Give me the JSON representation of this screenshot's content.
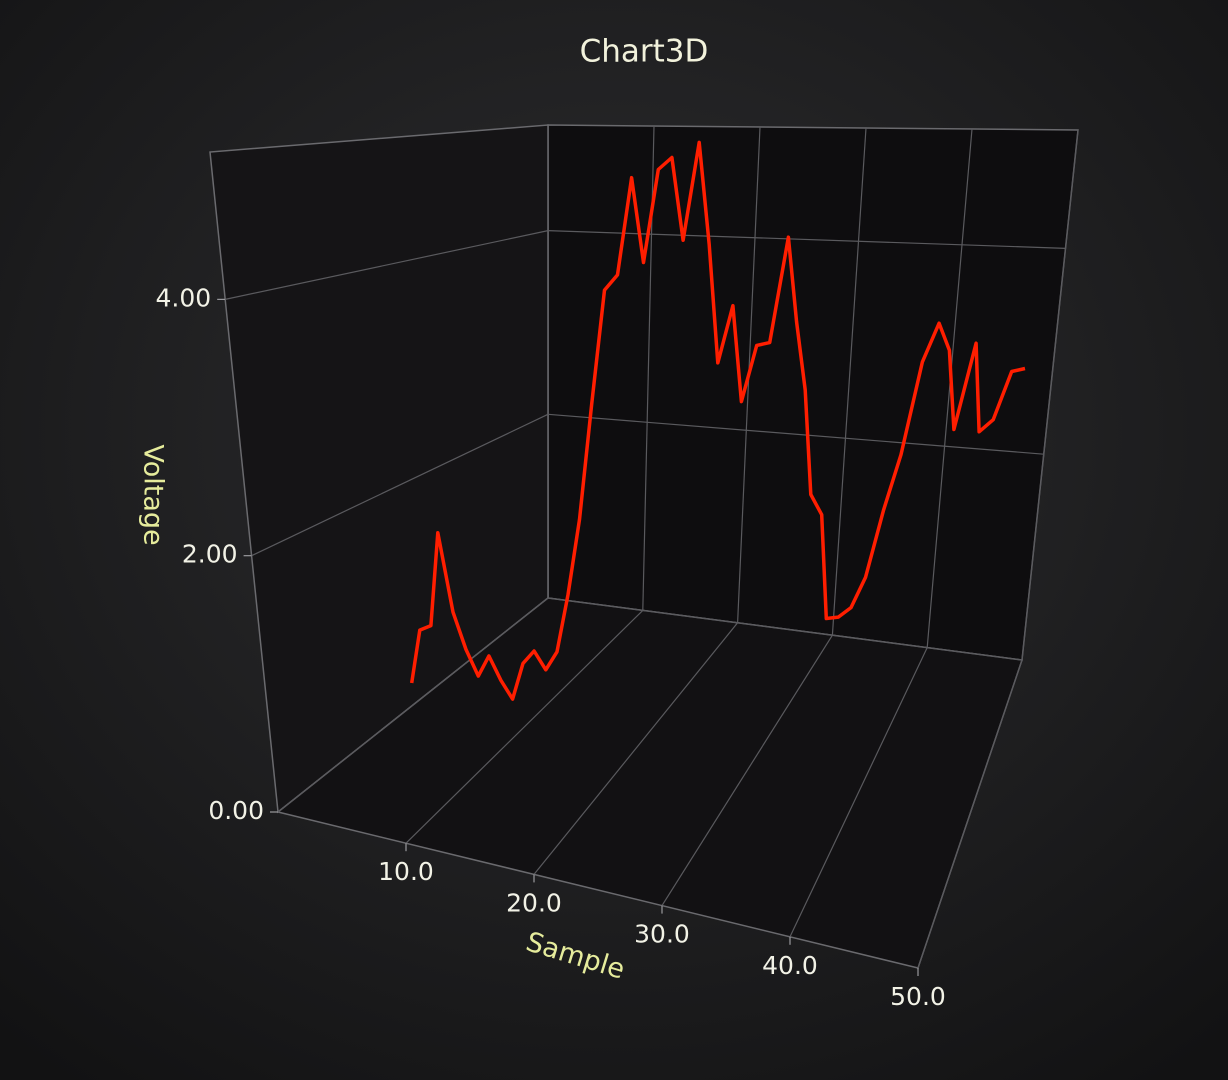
{
  "chart_data": {
    "type": "line",
    "title": "Chart3D",
    "xlabel": "Sample",
    "ylabel": "Voltage",
    "x": [
      0,
      1,
      2,
      3,
      4,
      5,
      6,
      7,
      8,
      9,
      10,
      11,
      12,
      13,
      14,
      15,
      16,
      17,
      18,
      19,
      20,
      21,
      22,
      23,
      24,
      25,
      26,
      27,
      28,
      29,
      30,
      31,
      32,
      33,
      34,
      35,
      36,
      37,
      38,
      39,
      40,
      41,
      42,
      43,
      44,
      45,
      46,
      47,
      48,
      49,
      50
    ],
    "values": [
      0.2,
      0.7,
      0.76,
      1.62,
      0.92,
      0.6,
      0.38,
      0.58,
      0.38,
      0.23,
      0.57,
      0.7,
      0.55,
      0.73,
      1.26,
      1.95,
      2.99,
      4.03,
      4.18,
      5.06,
      4.32,
      5.16,
      5.28,
      4.56,
      5.44,
      4.55,
      3.52,
      4.04,
      3.21,
      3.72,
      3.76,
      4.7,
      3.97,
      3.39,
      2.49,
      2.33,
      1.44,
      1.47,
      1.57,
      1.85,
      2.45,
      2.95,
      3.77,
      4.12,
      3.9,
      3.23,
      3.99,
      3.24,
      3.36,
      3.79,
      3.83
    ],
    "color": "#ff1e00",
    "xlim": [
      0,
      50
    ],
    "xticks": [
      {
        "value": 10,
        "label": "10.0"
      },
      {
        "value": 20,
        "label": "20.0"
      },
      {
        "value": 30,
        "label": "30.0"
      },
      {
        "value": 40,
        "label": "40.0"
      },
      {
        "value": 50,
        "label": "50.0"
      }
    ],
    "ylim": [
      0,
      5.15
    ],
    "yticks": [
      {
        "value": 0,
        "label": "0.00"
      },
      {
        "value": 2,
        "label": "2.00"
      },
      {
        "value": 4,
        "label": "4.00"
      }
    ],
    "grid": true
  }
}
